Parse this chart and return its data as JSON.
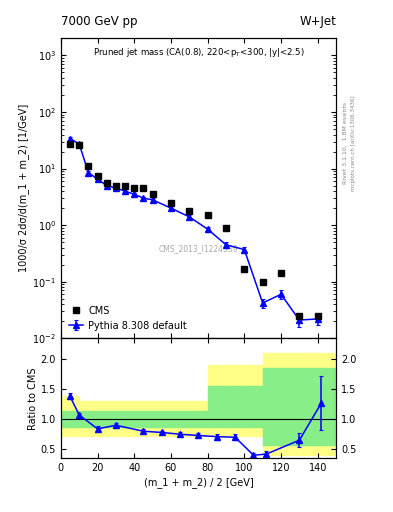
{
  "title_top": "7000 GeV pp",
  "title_right": "W+Jet",
  "plot_title": "Pruned jet mass (CA(0.8), 220<p_{T}<300, |y|<2.5)",
  "watermark": "CMS_2013_I1224539",
  "rivet_text": "Rivet 3.1.10,  1.8M events",
  "arxiv_text": "mcplots.cern.ch [arXiv:1306.3436]",
  "xlabel": "(m_1 + m_2) / 2 [GeV]",
  "ylabel_main": "1000/σ 2dσ/d(m_1 + m_2) [1/GeV]",
  "ylabel_ratio": "Ratio to CMS",
  "cms_x": [
    5,
    10,
    15,
    20,
    25,
    30,
    35,
    40,
    45,
    50,
    60,
    70,
    80,
    90,
    100,
    110,
    120,
    130,
    140
  ],
  "cms_y": [
    27.0,
    26.0,
    11.0,
    7.5,
    5.5,
    5.0,
    5.0,
    4.5,
    4.5,
    3.5,
    2.5,
    1.8,
    1.5,
    0.9,
    0.17,
    0.1,
    0.14,
    0.025,
    0.025
  ],
  "pythia_x": [
    5,
    10,
    15,
    20,
    25,
    30,
    35,
    40,
    45,
    50,
    60,
    70,
    80,
    90,
    100,
    110,
    120,
    130,
    140
  ],
  "pythia_y": [
    34.0,
    27.0,
    8.5,
    6.5,
    5.0,
    4.5,
    4.0,
    3.5,
    3.0,
    2.8,
    2.0,
    1.4,
    0.85,
    0.45,
    0.37,
    0.042,
    0.06,
    0.021,
    0.022
  ],
  "pythia_yerr": [
    1.5,
    1.0,
    0.5,
    0.4,
    0.3,
    0.3,
    0.3,
    0.2,
    0.2,
    0.2,
    0.15,
    0.1,
    0.08,
    0.05,
    0.04,
    0.008,
    0.01,
    0.005,
    0.005
  ],
  "ratio_x": [
    5,
    10,
    20,
    30,
    45,
    55,
    65,
    75,
    85,
    95,
    105,
    112,
    130,
    142
  ],
  "ratio_y": [
    1.38,
    1.07,
    0.84,
    0.9,
    0.8,
    0.78,
    0.75,
    0.73,
    0.71,
    0.7,
    0.4,
    0.42,
    0.65,
    1.27
  ],
  "ratio_yerr": [
    0.05,
    0.04,
    0.04,
    0.04,
    0.03,
    0.03,
    0.04,
    0.04,
    0.05,
    0.05,
    0.04,
    0.05,
    0.12,
    0.45
  ],
  "yellow_edges": [
    0,
    10,
    20,
    30,
    40,
    50,
    60,
    70,
    80,
    90,
    100,
    110,
    120,
    130,
    150
  ],
  "yellow_lo": [
    0.72,
    0.72,
    0.72,
    0.72,
    0.72,
    0.72,
    0.72,
    0.72,
    0.72,
    0.72,
    0.72,
    0.4,
    0.4,
    0.4,
    0.4
  ],
  "yellow_hi": [
    1.38,
    1.3,
    1.3,
    1.3,
    1.3,
    1.3,
    1.3,
    1.3,
    1.9,
    1.9,
    1.9,
    2.1,
    2.1,
    2.1,
    2.1
  ],
  "green_edges": [
    0,
    10,
    20,
    30,
    40,
    50,
    60,
    70,
    80,
    90,
    100,
    110,
    120,
    130,
    150
  ],
  "green_lo": [
    0.87,
    0.87,
    0.87,
    0.87,
    0.87,
    0.87,
    0.87,
    0.87,
    0.87,
    0.87,
    0.87,
    0.57,
    0.57,
    0.57,
    0.57
  ],
  "green_hi": [
    1.13,
    1.13,
    1.13,
    1.13,
    1.13,
    1.13,
    1.13,
    1.13,
    1.55,
    1.55,
    1.55,
    1.85,
    1.85,
    1.85,
    1.85
  ],
  "cms_color": "black",
  "pythia_color": "blue",
  "yellow_color": "#ffff88",
  "green_color": "#88ee88",
  "xlim": [
    0,
    150
  ],
  "ylim_main": [
    0.01,
    2000
  ],
  "ylim_ratio": [
    0.35,
    2.35
  ],
  "ratio_yticks": [
    0.5,
    1.0,
    1.5,
    2.0
  ]
}
